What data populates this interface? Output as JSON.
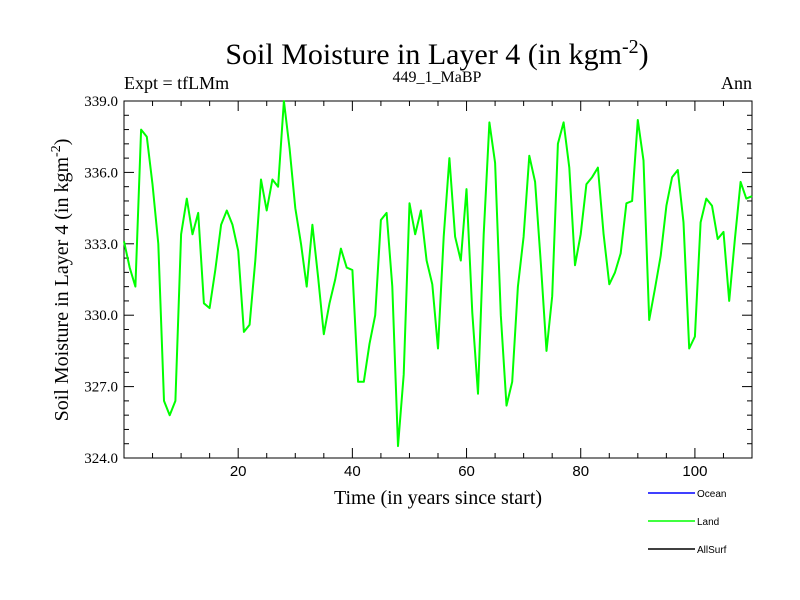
{
  "chart_data": {
    "type": "line",
    "title": "Soil Moisture in Layer 4 (in kgm",
    "title_sup": "-2",
    "title_end": ")",
    "subtitle_left": "Expt = tfLMm",
    "subtitle_center": "449_1_MaBP",
    "subtitle_right": "Ann",
    "xlabel": "Time (in years since start)",
    "ylabel": "Soil Moisture in Layer 4 (in kgm",
    "ylabel_sup": "-2",
    "ylabel_end": ")",
    "xlim": [
      0,
      110
    ],
    "ylim": [
      324.0,
      339.0
    ],
    "xticks": [
      20,
      40,
      60,
      80,
      100
    ],
    "xtick_labels": [
      "20",
      "40",
      "60",
      "80",
      "100"
    ],
    "yticks": [
      324,
      327,
      330,
      333,
      336,
      339
    ],
    "ytick_labels": [
      "324.0",
      "327.0",
      "330.0",
      "333.0",
      "336.0",
      "339.0"
    ],
    "grid": false,
    "legend_position": "bottom-right",
    "legend": [
      {
        "name": "Ocean",
        "color": "#0000ff"
      },
      {
        "name": "Land",
        "color": "#00ff00"
      },
      {
        "name": "AllSurf",
        "color": "#000000"
      }
    ],
    "series": [
      {
        "name": "Land",
        "color": "#00ff00",
        "x": [
          0,
          1,
          2,
          3,
          4,
          5,
          6,
          7,
          8,
          9,
          10,
          11,
          12,
          13,
          14,
          15,
          16,
          17,
          18,
          19,
          20,
          21,
          22,
          23,
          24,
          25,
          26,
          27,
          28,
          29,
          30,
          31,
          32,
          33,
          34,
          35,
          36,
          37,
          38,
          39,
          40,
          41,
          42,
          43,
          44,
          45,
          46,
          47,
          48,
          49,
          50,
          51,
          52,
          53,
          54,
          55,
          56,
          57,
          58,
          59,
          60,
          61,
          62,
          63,
          64,
          65,
          66,
          67,
          68,
          69,
          70,
          71,
          72,
          73,
          74,
          75,
          76,
          77,
          78,
          79,
          80,
          81,
          82,
          83,
          84,
          85,
          86,
          87,
          88,
          89,
          90,
          91,
          92,
          93,
          94,
          95,
          96,
          97,
          98,
          99,
          100,
          101,
          102,
          103,
          104,
          105,
          106,
          107,
          108,
          109,
          110
        ],
        "y": [
          333.1,
          332.0,
          331.2,
          337.8,
          337.5,
          335.5,
          333.0,
          326.4,
          325.8,
          326.4,
          333.4,
          334.9,
          333.4,
          334.3,
          330.5,
          330.3,
          331.9,
          333.8,
          334.4,
          333.8,
          332.7,
          329.3,
          329.6,
          332.3,
          335.7,
          334.4,
          335.7,
          335.4,
          339.0,
          337.0,
          334.5,
          333.0,
          331.2,
          333.8,
          331.6,
          329.2,
          330.5,
          331.5,
          332.8,
          332.0,
          331.9,
          327.2,
          327.2,
          328.8,
          330.0,
          334.0,
          334.3,
          331.2,
          324.5,
          327.5,
          334.7,
          333.4,
          334.4,
          332.3,
          331.3,
          328.6,
          333.3,
          336.6,
          333.3,
          332.3,
          335.3,
          330.1,
          326.7,
          333.4,
          338.1,
          336.4,
          330.0,
          326.2,
          327.2,
          331.2,
          333.3,
          336.7,
          335.6,
          332.2,
          328.5,
          330.8,
          337.2,
          338.1,
          336.2,
          332.1,
          333.4,
          335.5,
          335.8,
          336.2,
          333.4,
          331.3,
          331.8,
          332.6,
          334.7,
          334.8,
          338.2,
          336.5,
          329.8,
          331.1,
          332.5,
          334.6,
          335.8,
          336.1,
          333.9,
          328.6,
          329.1,
          333.9,
          334.9,
          334.6,
          333.2,
          333.5,
          330.6,
          333.2,
          335.6,
          334.9,
          335.0
        ]
      }
    ]
  }
}
